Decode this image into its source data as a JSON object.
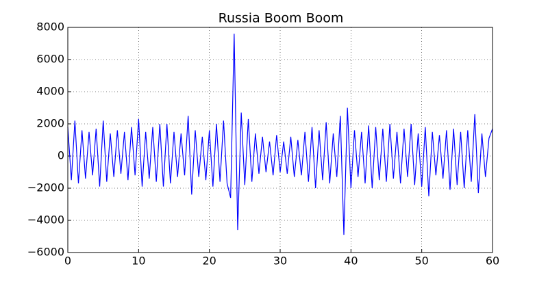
{
  "chart_data": {
    "type": "line",
    "title": "Russia Boom Boom",
    "color": "#0000ff",
    "grid": true,
    "x": [
      0,
      0.5,
      1,
      1.5,
      2,
      2.5,
      3,
      3.5,
      4,
      4.5,
      5,
      5.5,
      6,
      6.5,
      7,
      7.5,
      8,
      8.5,
      9,
      9.5,
      10,
      10.5,
      11,
      11.5,
      12,
      12.5,
      13,
      13.5,
      14,
      14.5,
      15,
      15.5,
      16,
      16.5,
      17,
      17.5,
      18,
      18.5,
      19,
      19.5,
      20,
      20.5,
      21,
      21.5,
      22,
      22.5,
      23,
      23.5,
      24,
      24.5,
      25,
      25.5,
      26,
      26.5,
      27,
      27.5,
      28,
      28.5,
      29,
      29.5,
      30,
      30.5,
      31,
      31.5,
      32,
      32.5,
      33,
      33.5,
      34,
      34.5,
      35,
      35.5,
      36,
      36.5,
      37,
      37.5,
      38,
      38.5,
      39,
      39.5,
      40,
      40.5,
      41,
      41.5,
      42,
      42.5,
      43,
      43.5,
      44,
      44.5,
      45,
      45.5,
      46,
      46.5,
      47,
      47.5,
      48,
      48.5,
      49,
      49.5,
      50,
      50.5,
      51,
      51.5,
      52,
      52.5,
      53,
      53.5,
      54,
      54.5,
      55,
      55.5,
      56,
      56.5,
      57,
      57.5,
      58,
      58.5,
      59,
      59.5,
      60
    ],
    "values": [
      1800,
      -1500,
      2200,
      -1700,
      1600,
      -1400,
      1500,
      -1200,
      1700,
      -1900,
      2200,
      -1600,
      1400,
      -1300,
      1600,
      -1100,
      1500,
      -1500,
      1800,
      -1200,
      2300,
      -1900,
      1500,
      -1400,
      1800,
      -1600,
      2000,
      -1900,
      2000,
      -1700,
      1500,
      -1300,
      1400,
      -1200,
      2500,
      -2400,
      1600,
      -1300,
      1200,
      -1500,
      1600,
      -1900,
      2000,
      -1600,
      2200,
      -1700,
      -2600,
      7600,
      -4600,
      2700,
      -1800,
      2300,
      -1600,
      1400,
      -1100,
      1200,
      -1000,
      900,
      -1200,
      1300,
      -1000,
      900,
      -1100,
      1200,
      -1300,
      1000,
      -1200,
      1500,
      -1600,
      1800,
      -2000,
      1600,
      -1500,
      2100,
      -1700,
      1400,
      -1300,
      2500,
      -4900,
      3000,
      -2000,
      1600,
      -1300,
      1500,
      -1700,
      1900,
      -2000,
      1800,
      -1500,
      1700,
      -1600,
      2000,
      -1400,
      1500,
      -1700,
      1700,
      -1300,
      2000,
      -1800,
      1400,
      -1900,
      1800,
      -2500,
      1500,
      -1200,
      1300,
      -1400,
      1600,
      -2100,
      1700,
      -1800,
      1500,
      -2000,
      1600,
      -1600,
      2600,
      -2300,
      1400,
      -1300,
      1100,
      1700
    ],
    "xlim": [
      0,
      60
    ],
    "xticks": [
      0,
      10,
      20,
      30,
      40,
      50,
      60
    ],
    "ylim": [
      -6000,
      8000
    ],
    "yticks": [
      {
        "value": -6000,
        "label": "−6000"
      },
      {
        "value": -4000,
        "label": "−4000"
      },
      {
        "value": -2000,
        "label": "−2000"
      },
      0,
      2000,
      4000,
      6000,
      8000
    ]
  }
}
